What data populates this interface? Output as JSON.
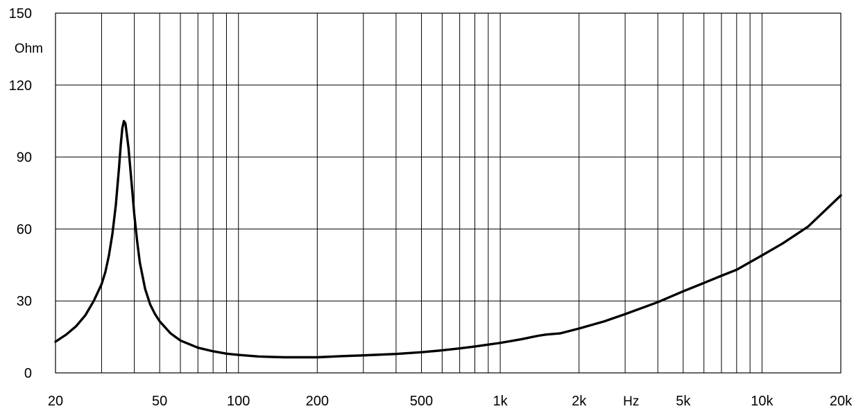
{
  "chart_data": {
    "type": "line",
    "title": "",
    "xlabel": "Hz",
    "ylabel": "Ohm",
    "x_scale": "log",
    "xlim": [
      20,
      20000
    ],
    "ylim": [
      0,
      150
    ],
    "grid": true,
    "legend": "none",
    "line_color": "#000000",
    "grid_color": "#000000",
    "x_ticks": [
      {
        "value": 20,
        "label": "20"
      },
      {
        "value": 50,
        "label": "50"
      },
      {
        "value": 100,
        "label": "100"
      },
      {
        "value": 200,
        "label": "200"
      },
      {
        "value": 500,
        "label": "500"
      },
      {
        "value": 1000,
        "label": "1k"
      },
      {
        "value": 2000,
        "label": "2k"
      },
      {
        "value": 5000,
        "label": "5k"
      },
      {
        "value": 10000,
        "label": "10k"
      },
      {
        "value": 20000,
        "label": "20k"
      }
    ],
    "y_ticks": [
      {
        "value": 0,
        "label": "0"
      },
      {
        "value": 30,
        "label": "30"
      },
      {
        "value": 60,
        "label": "60"
      },
      {
        "value": 90,
        "label": "90"
      },
      {
        "value": 120,
        "label": "120"
      },
      {
        "value": 150,
        "label": "150"
      }
    ],
    "series": [
      {
        "x": [
          20,
          22,
          24,
          26,
          28,
          30,
          31,
          32,
          33,
          34,
          35,
          35.5,
          36,
          36.5,
          37,
          38,
          39,
          40,
          41,
          42,
          44,
          46,
          48,
          50,
          55,
          60,
          70,
          80,
          90,
          100,
          120,
          150,
          200,
          250,
          300,
          400,
          500,
          600,
          700,
          800,
          900,
          1000,
          1200,
          1400,
          1500,
          1700,
          2000,
          2500,
          3000,
          4000,
          5000,
          6000,
          7000,
          8000,
          10000,
          12000,
          15000,
          20000
        ],
        "y": [
          13,
          16,
          19.5,
          24,
          30,
          37,
          42,
          49,
          58,
          70,
          86,
          95,
          102,
          105,
          104,
          94,
          80,
          66,
          55,
          46,
          35,
          28.5,
          24.5,
          21.5,
          16.5,
          13.5,
          10.5,
          9,
          8,
          7.5,
          6.8,
          6.5,
          6.5,
          7,
          7.3,
          7.9,
          8.6,
          9.4,
          10.2,
          11,
          11.8,
          12.5,
          14,
          15.5,
          16,
          16.5,
          18.5,
          21.5,
          24.5,
          29.5,
          34,
          37.5,
          40.5,
          43,
          49,
          54,
          61,
          74
        ]
      }
    ]
  }
}
